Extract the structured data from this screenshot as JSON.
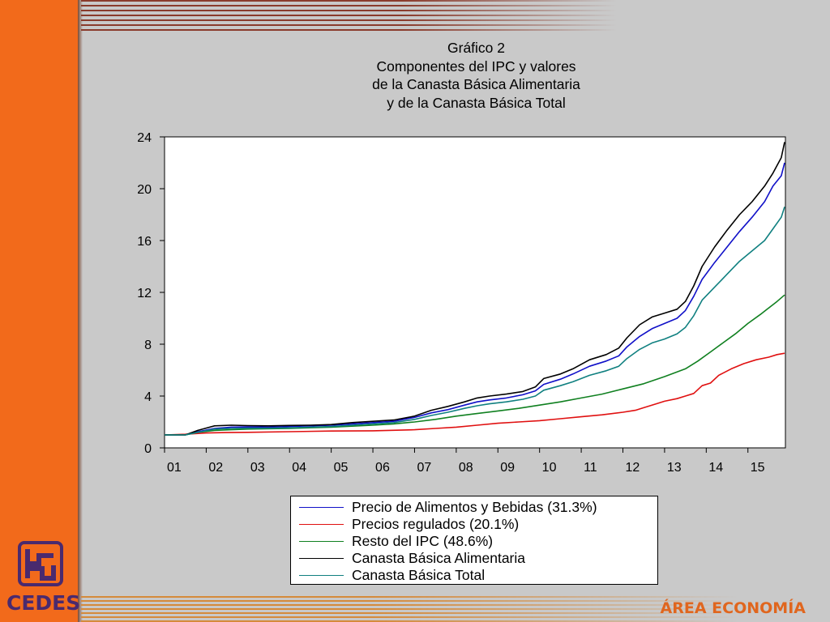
{
  "branding": {
    "logo_text": "CEDES",
    "area_label": "ÁREA ECONOMÍA",
    "accent_color": "#f26a1b",
    "logo_color": "#4a2a6e"
  },
  "chart_data": {
    "type": "line",
    "title": [
      "Gráfico 2",
      "Componentes del IPC y valores",
      "de la Canasta Básica Alimentaria",
      "y de la Canasta Básica Total"
    ],
    "xlabel": "",
    "ylabel": "",
    "ylim": [
      0,
      24
    ],
    "yticks": [
      "0",
      "4",
      "8",
      "12",
      "16",
      "20",
      "24"
    ],
    "xlim": [
      2001.0,
      2015.9
    ],
    "xticks": [
      {
        "x": 2001.0,
        "label": "01"
      },
      {
        "x": 2002.0,
        "label": "02"
      },
      {
        "x": 2003.0,
        "label": "03"
      },
      {
        "x": 2004.0,
        "label": "04"
      },
      {
        "x": 2005.0,
        "label": "05"
      },
      {
        "x": 2006.0,
        "label": "06"
      },
      {
        "x": 2007.0,
        "label": "07"
      },
      {
        "x": 2008.0,
        "label": "08"
      },
      {
        "x": 2009.0,
        "label": "09"
      },
      {
        "x": 2010.0,
        "label": "10"
      },
      {
        "x": 2011.0,
        "label": "11"
      },
      {
        "x": 2012.0,
        "label": "12"
      },
      {
        "x": 2013.0,
        "label": "13"
      },
      {
        "x": 2014.0,
        "label": "14"
      },
      {
        "x": 2015.0,
        "label": "15"
      }
    ],
    "grid": false,
    "legend_position": "bottom",
    "series": [
      {
        "name": "Precio de Alimentos y Bebidas (31.3%)",
        "color": "#1010c8",
        "points": [
          [
            2001.0,
            1.0
          ],
          [
            2001.5,
            1.0
          ],
          [
            2001.8,
            1.25
          ],
          [
            2002.2,
            1.5
          ],
          [
            2002.6,
            1.6
          ],
          [
            2003.0,
            1.62
          ],
          [
            2003.5,
            1.6
          ],
          [
            2004.0,
            1.65
          ],
          [
            2004.5,
            1.7
          ],
          [
            2005.0,
            1.75
          ],
          [
            2005.5,
            1.85
          ],
          [
            2006.0,
            1.95
          ],
          [
            2006.5,
            2.05
          ],
          [
            2007.0,
            2.35
          ],
          [
            2007.4,
            2.7
          ],
          [
            2007.8,
            2.95
          ],
          [
            2008.2,
            3.3
          ],
          [
            2008.5,
            3.55
          ],
          [
            2008.8,
            3.7
          ],
          [
            2009.2,
            3.85
          ],
          [
            2009.6,
            4.1
          ],
          [
            2009.9,
            4.4
          ],
          [
            2010.1,
            4.9
          ],
          [
            2010.5,
            5.3
          ],
          [
            2010.8,
            5.7
          ],
          [
            2011.2,
            6.3
          ],
          [
            2011.6,
            6.7
          ],
          [
            2011.9,
            7.1
          ],
          [
            2012.1,
            7.8
          ],
          [
            2012.4,
            8.6
          ],
          [
            2012.7,
            9.2
          ],
          [
            2013.0,
            9.6
          ],
          [
            2013.3,
            10.0
          ],
          [
            2013.5,
            10.6
          ],
          [
            2013.7,
            11.7
          ],
          [
            2013.9,
            13.0
          ],
          [
            2014.2,
            14.3
          ],
          [
            2014.5,
            15.5
          ],
          [
            2014.8,
            16.7
          ],
          [
            2015.1,
            17.8
          ],
          [
            2015.4,
            19.0
          ],
          [
            2015.6,
            20.2
          ],
          [
            2015.8,
            21.0
          ],
          [
            2015.88,
            22.0
          ]
        ]
      },
      {
        "name": "Precios regulados (20.1%)",
        "color": "#e01010",
        "points": [
          [
            2001.0,
            1.0
          ],
          [
            2001.5,
            1.05
          ],
          [
            2002.0,
            1.15
          ],
          [
            2002.5,
            1.18
          ],
          [
            2003.0,
            1.2
          ],
          [
            2004.0,
            1.25
          ],
          [
            2005.0,
            1.3
          ],
          [
            2006.0,
            1.32
          ],
          [
            2007.0,
            1.4
          ],
          [
            2007.5,
            1.5
          ],
          [
            2008.0,
            1.6
          ],
          [
            2008.5,
            1.75
          ],
          [
            2009.0,
            1.9
          ],
          [
            2009.5,
            2.0
          ],
          [
            2010.0,
            2.1
          ],
          [
            2010.5,
            2.25
          ],
          [
            2011.0,
            2.4
          ],
          [
            2011.5,
            2.55
          ],
          [
            2012.0,
            2.75
          ],
          [
            2012.3,
            2.9
          ],
          [
            2012.5,
            3.1
          ],
          [
            2012.8,
            3.4
          ],
          [
            2013.0,
            3.6
          ],
          [
            2013.3,
            3.8
          ],
          [
            2013.5,
            4.0
          ],
          [
            2013.7,
            4.2
          ],
          [
            2013.9,
            4.8
          ],
          [
            2014.1,
            5.0
          ],
          [
            2014.3,
            5.6
          ],
          [
            2014.6,
            6.1
          ],
          [
            2014.9,
            6.5
          ],
          [
            2015.2,
            6.8
          ],
          [
            2015.5,
            7.0
          ],
          [
            2015.7,
            7.2
          ],
          [
            2015.88,
            7.3
          ]
        ]
      },
      {
        "name": "Resto del IPC (48.6%)",
        "color": "#108020",
        "points": [
          [
            2001.0,
            1.0
          ],
          [
            2001.5,
            1.0
          ],
          [
            2001.8,
            1.2
          ],
          [
            2002.2,
            1.35
          ],
          [
            2002.6,
            1.4
          ],
          [
            2003.0,
            1.45
          ],
          [
            2004.0,
            1.5
          ],
          [
            2005.0,
            1.6
          ],
          [
            2006.0,
            1.75
          ],
          [
            2006.5,
            1.85
          ],
          [
            2007.0,
            2.0
          ],
          [
            2007.5,
            2.2
          ],
          [
            2008.0,
            2.45
          ],
          [
            2008.5,
            2.65
          ],
          [
            2009.0,
            2.85
          ],
          [
            2009.5,
            3.05
          ],
          [
            2010.0,
            3.3
          ],
          [
            2010.5,
            3.55
          ],
          [
            2011.0,
            3.85
          ],
          [
            2011.5,
            4.15
          ],
          [
            2012.0,
            4.55
          ],
          [
            2012.5,
            4.95
          ],
          [
            2013.0,
            5.5
          ],
          [
            2013.5,
            6.1
          ],
          [
            2013.8,
            6.7
          ],
          [
            2014.1,
            7.4
          ],
          [
            2014.4,
            8.1
          ],
          [
            2014.7,
            8.8
          ],
          [
            2015.0,
            9.6
          ],
          [
            2015.3,
            10.3
          ],
          [
            2015.5,
            10.8
          ],
          [
            2015.7,
            11.3
          ],
          [
            2015.88,
            11.8
          ]
        ]
      },
      {
        "name": "Canasta Básica Alimentaria",
        "color": "#000000",
        "points": [
          [
            2001.0,
            1.0
          ],
          [
            2001.5,
            1.0
          ],
          [
            2001.8,
            1.35
          ],
          [
            2002.2,
            1.7
          ],
          [
            2002.6,
            1.75
          ],
          [
            2003.0,
            1.72
          ],
          [
            2003.5,
            1.7
          ],
          [
            2004.0,
            1.73
          ],
          [
            2004.5,
            1.75
          ],
          [
            2005.0,
            1.8
          ],
          [
            2005.5,
            1.95
          ],
          [
            2006.0,
            2.05
          ],
          [
            2006.5,
            2.15
          ],
          [
            2007.0,
            2.45
          ],
          [
            2007.4,
            2.9
          ],
          [
            2007.8,
            3.2
          ],
          [
            2008.2,
            3.55
          ],
          [
            2008.5,
            3.85
          ],
          [
            2008.8,
            4.0
          ],
          [
            2009.2,
            4.15
          ],
          [
            2009.6,
            4.35
          ],
          [
            2009.9,
            4.7
          ],
          [
            2010.1,
            5.35
          ],
          [
            2010.5,
            5.7
          ],
          [
            2010.8,
            6.1
          ],
          [
            2011.2,
            6.8
          ],
          [
            2011.6,
            7.2
          ],
          [
            2011.9,
            7.7
          ],
          [
            2012.1,
            8.5
          ],
          [
            2012.4,
            9.5
          ],
          [
            2012.7,
            10.1
          ],
          [
            2013.0,
            10.4
          ],
          [
            2013.3,
            10.7
          ],
          [
            2013.5,
            11.3
          ],
          [
            2013.7,
            12.5
          ],
          [
            2013.9,
            14.0
          ],
          [
            2014.2,
            15.5
          ],
          [
            2014.5,
            16.8
          ],
          [
            2014.8,
            18.0
          ],
          [
            2015.1,
            19.0
          ],
          [
            2015.4,
            20.2
          ],
          [
            2015.6,
            21.2
          ],
          [
            2015.8,
            22.4
          ],
          [
            2015.88,
            23.6
          ]
        ]
      },
      {
        "name": "Canasta Básica Total",
        "color": "#108080",
        "points": [
          [
            2001.0,
            1.0
          ],
          [
            2001.5,
            1.0
          ],
          [
            2001.8,
            1.2
          ],
          [
            2002.2,
            1.45
          ],
          [
            2002.6,
            1.5
          ],
          [
            2003.0,
            1.52
          ],
          [
            2003.5,
            1.52
          ],
          [
            2004.0,
            1.55
          ],
          [
            2004.5,
            1.6
          ],
          [
            2005.0,
            1.65
          ],
          [
            2005.5,
            1.75
          ],
          [
            2006.0,
            1.85
          ],
          [
            2006.5,
            1.95
          ],
          [
            2007.0,
            2.2
          ],
          [
            2007.4,
            2.5
          ],
          [
            2007.8,
            2.75
          ],
          [
            2008.2,
            3.05
          ],
          [
            2008.5,
            3.25
          ],
          [
            2008.8,
            3.4
          ],
          [
            2009.2,
            3.55
          ],
          [
            2009.6,
            3.75
          ],
          [
            2009.9,
            4.0
          ],
          [
            2010.1,
            4.45
          ],
          [
            2010.5,
            4.8
          ],
          [
            2010.8,
            5.1
          ],
          [
            2011.2,
            5.6
          ],
          [
            2011.6,
            5.95
          ],
          [
            2011.9,
            6.3
          ],
          [
            2012.1,
            6.9
          ],
          [
            2012.4,
            7.6
          ],
          [
            2012.7,
            8.1
          ],
          [
            2013.0,
            8.4
          ],
          [
            2013.3,
            8.8
          ],
          [
            2013.5,
            9.3
          ],
          [
            2013.7,
            10.2
          ],
          [
            2013.9,
            11.4
          ],
          [
            2014.2,
            12.4
          ],
          [
            2014.5,
            13.4
          ],
          [
            2014.8,
            14.4
          ],
          [
            2015.1,
            15.2
          ],
          [
            2015.4,
            16.0
          ],
          [
            2015.6,
            16.9
          ],
          [
            2015.8,
            17.8
          ],
          [
            2015.88,
            18.6
          ]
        ]
      }
    ]
  }
}
